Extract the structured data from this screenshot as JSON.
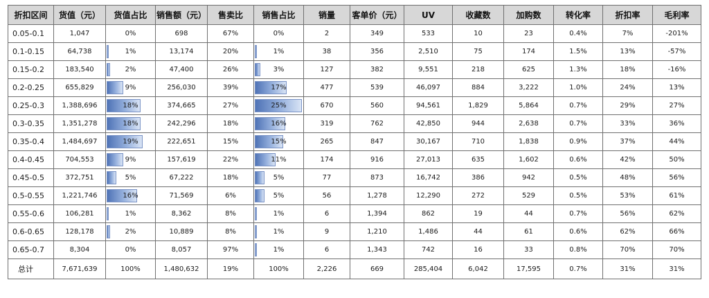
{
  "headers": [
    "折扣区间",
    "货值（元）",
    "货值占比",
    "销售额（元）",
    "售卖比",
    "销售占比",
    "销量",
    "客单价（元）",
    "UV",
    "收藏数",
    "加购数",
    "转化率",
    "折扣率",
    "毛利率"
  ],
  "rows": [
    {
      "range": "0.05-0.1",
      "value": "1,047",
      "value_share": "0%",
      "value_share_pct": 0,
      "sales": "698",
      "sell_ratio": "67%",
      "sales_share": "0%",
      "sales_share_pct": 0,
      "volume": "2",
      "unit_price": "349",
      "uv": "533",
      "favorites": "10",
      "cart_adds": "23",
      "conversion": "0.4%",
      "discount": "7%",
      "gross_margin": "-201%"
    },
    {
      "range": "0.1-0.15",
      "value": "64,738",
      "value_share": "1%",
      "value_share_pct": 1,
      "sales": "13,174",
      "sell_ratio": "20%",
      "sales_share": "1%",
      "sales_share_pct": 1,
      "volume": "38",
      "unit_price": "356",
      "uv": "2,510",
      "favorites": "75",
      "cart_adds": "174",
      "conversion": "1.5%",
      "discount": "13%",
      "gross_margin": "-57%"
    },
    {
      "range": "0.15-0.2",
      "value": "183,540",
      "value_share": "2%",
      "value_share_pct": 2,
      "sales": "47,400",
      "sell_ratio": "26%",
      "sales_share": "3%",
      "sales_share_pct": 3,
      "volume": "127",
      "unit_price": "382",
      "uv": "9,551",
      "favorites": "218",
      "cart_adds": "625",
      "conversion": "1.3%",
      "discount": "18%",
      "gross_margin": "-16%"
    },
    {
      "range": "0.2-0.25",
      "value": "655,829",
      "value_share": "9%",
      "value_share_pct": 9,
      "sales": "256,030",
      "sell_ratio": "39%",
      "sales_share": "17%",
      "sales_share_pct": 17,
      "volume": "477",
      "unit_price": "539",
      "uv": "46,097",
      "favorites": "884",
      "cart_adds": "3,222",
      "conversion": "1.0%",
      "discount": "24%",
      "gross_margin": "13%"
    },
    {
      "range": "0.25-0.3",
      "value": "1,388,696",
      "value_share": "18%",
      "value_share_pct": 18,
      "sales": "374,665",
      "sell_ratio": "27%",
      "sales_share": "25%",
      "sales_share_pct": 25,
      "volume": "670",
      "unit_price": "560",
      "uv": "94,561",
      "favorites": "1,829",
      "cart_adds": "5,864",
      "conversion": "0.7%",
      "discount": "29%",
      "gross_margin": "27%"
    },
    {
      "range": "0.3-0.35",
      "value": "1,351,278",
      "value_share": "18%",
      "value_share_pct": 18,
      "sales": "242,296",
      "sell_ratio": "18%",
      "sales_share": "16%",
      "sales_share_pct": 16,
      "volume": "319",
      "unit_price": "762",
      "uv": "42,850",
      "favorites": "944",
      "cart_adds": "2,638",
      "conversion": "0.7%",
      "discount": "33%",
      "gross_margin": "36%"
    },
    {
      "range": "0.35-0.4",
      "value": "1,484,697",
      "value_share": "19%",
      "value_share_pct": 19,
      "sales": "222,651",
      "sell_ratio": "15%",
      "sales_share": "15%",
      "sales_share_pct": 15,
      "volume": "265",
      "unit_price": "847",
      "uv": "30,167",
      "favorites": "710",
      "cart_adds": "1,838",
      "conversion": "0.9%",
      "discount": "37%",
      "gross_margin": "44%"
    },
    {
      "range": "0.4-0.45",
      "value": "704,553",
      "value_share": "9%",
      "value_share_pct": 9,
      "sales": "157,619",
      "sell_ratio": "22%",
      "sales_share": "11%",
      "sales_share_pct": 11,
      "volume": "174",
      "unit_price": "916",
      "uv": "27,013",
      "favorites": "635",
      "cart_adds": "1,602",
      "conversion": "0.6%",
      "discount": "42%",
      "gross_margin": "50%"
    },
    {
      "range": "0.45-0.5",
      "value": "372,751",
      "value_share": "5%",
      "value_share_pct": 5,
      "sales": "67,222",
      "sell_ratio": "18%",
      "sales_share": "5%",
      "sales_share_pct": 5,
      "volume": "77",
      "unit_price": "873",
      "uv": "16,742",
      "favorites": "386",
      "cart_adds": "942",
      "conversion": "0.5%",
      "discount": "48%",
      "gross_margin": "56%"
    },
    {
      "range": "0.5-0.55",
      "value": "1,221,746",
      "value_share": "16%",
      "value_share_pct": 16,
      "sales": "71,569",
      "sell_ratio": "6%",
      "sales_share": "5%",
      "sales_share_pct": 5,
      "volume": "56",
      "unit_price": "1,278",
      "uv": "12,290",
      "favorites": "272",
      "cart_adds": "529",
      "conversion": "0.5%",
      "discount": "53%",
      "gross_margin": "61%"
    },
    {
      "range": "0.55-0.6",
      "value": "106,281",
      "value_share": "1%",
      "value_share_pct": 1,
      "sales": "8,362",
      "sell_ratio": "8%",
      "sales_share": "1%",
      "sales_share_pct": 1,
      "volume": "6",
      "unit_price": "1,394",
      "uv": "862",
      "favorites": "19",
      "cart_adds": "44",
      "conversion": "0.7%",
      "discount": "56%",
      "gross_margin": "62%"
    },
    {
      "range": "0.6-0.65",
      "value": "128,178",
      "value_share": "2%",
      "value_share_pct": 2,
      "sales": "10,889",
      "sell_ratio": "8%",
      "sales_share": "1%",
      "sales_share_pct": 1,
      "volume": "9",
      "unit_price": "1,210",
      "uv": "1,486",
      "favorites": "44",
      "cart_adds": "61",
      "conversion": "0.6%",
      "discount": "62%",
      "gross_margin": "66%"
    },
    {
      "range": "0.65-0.7",
      "value": "8,304",
      "value_share": "0%",
      "value_share_pct": 0,
      "sales": "8,057",
      "sell_ratio": "97%",
      "sales_share": "1%",
      "sales_share_pct": 1,
      "volume": "6",
      "unit_price": "1,343",
      "uv": "742",
      "favorites": "16",
      "cart_adds": "33",
      "conversion": "0.8%",
      "discount": "70%",
      "gross_margin": "70%"
    }
  ],
  "total": {
    "range": "总计",
    "value": "7,671,639",
    "value_share": "100%",
    "sales": "1,480,632",
    "sell_ratio": "19%",
    "sales_share": "100%",
    "volume": "2,226",
    "unit_price": "669",
    "uv": "285,404",
    "favorites": "6,042",
    "cart_adds": "17,595",
    "conversion": "0.7%",
    "discount": "31%",
    "gross_margin": "31%"
  },
  "colors": {
    "header_bg": "#d7d7d7",
    "bar_dark": "#4f73b6",
    "bar_light": "#d9e4f5",
    "border": "#6f6f6f"
  }
}
